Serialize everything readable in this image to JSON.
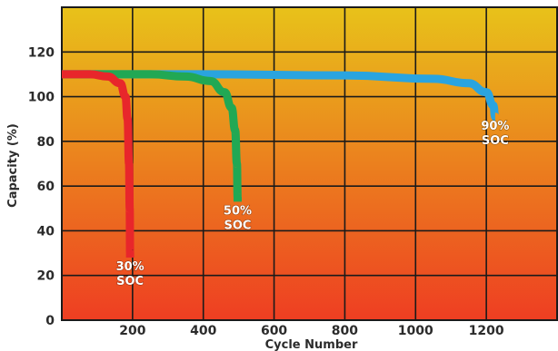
{
  "chart_data": {
    "type": "line",
    "title": "",
    "xlabel": "Cycle Number",
    "ylabel": "Capacity (%)",
    "xlim": [
      0,
      1400
    ],
    "ylim": [
      0,
      140
    ],
    "x_ticks": [
      "200",
      "400",
      "600",
      "800",
      "1000",
      "1200"
    ],
    "y_ticks": [
      "0",
      "20",
      "40",
      "60",
      "80",
      "100",
      "120"
    ],
    "grid": true,
    "background_gradient": {
      "top": "#e8c21a",
      "bottom": "#ee3e22"
    },
    "series": [
      {
        "name": "30% SOC",
        "label_lines": [
          "30%",
          "SOC"
        ],
        "color": "#e8262b",
        "points": [
          [
            0,
            110
          ],
          [
            80,
            110
          ],
          [
            130,
            109
          ],
          [
            165,
            106
          ],
          [
            180,
            100
          ],
          [
            186,
            90
          ],
          [
            190,
            70
          ],
          [
            192,
            50
          ],
          [
            193,
            30
          ],
          [
            193,
            28
          ]
        ]
      },
      {
        "name": "50% SOC",
        "label_lines": [
          "50%",
          "SOC"
        ],
        "color": "#21a854",
        "points": [
          [
            0,
            110
          ],
          [
            250,
            110
          ],
          [
            350,
            109
          ],
          [
            420,
            107
          ],
          [
            460,
            102
          ],
          [
            480,
            95
          ],
          [
            490,
            85
          ],
          [
            495,
            70
          ],
          [
            497,
            55
          ],
          [
            497,
            53
          ]
        ]
      },
      {
        "name": "90% SOC",
        "label_lines": [
          "90%",
          "SOC"
        ],
        "color": "#2aa4df",
        "points": [
          [
            0,
            110
          ],
          [
            400,
            110
          ],
          [
            800,
            109.5
          ],
          [
            1050,
            108
          ],
          [
            1150,
            106
          ],
          [
            1200,
            102
          ],
          [
            1220,
            96
          ],
          [
            1225,
            91
          ]
        ]
      }
    ]
  }
}
